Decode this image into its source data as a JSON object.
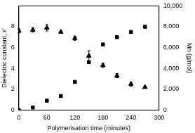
{
  "chart_data": {
    "type": "scatter",
    "x_label": "Polymerisation time (minutes)",
    "y_label": "Dielectric constant, ε'",
    "y2_label": "Mn (g/mol)",
    "x": [
      0,
      30,
      60,
      90,
      120,
      150,
      180,
      210,
      240,
      270
    ],
    "xlim": [
      0,
      300
    ],
    "xticks": [
      0,
      60,
      120,
      180,
      240,
      300
    ],
    "ylim": [
      0,
      10
    ],
    "yticks": [
      0,
      2,
      4,
      6,
      8
    ],
    "y2lim": [
      0,
      10000
    ],
    "y2ticks": [
      0,
      2000,
      4000,
      6000,
      8000,
      10000
    ],
    "grid": false,
    "series": [
      {
        "name": "Dielectric constant, ε'",
        "color": "#000000",
        "marker": "triangle",
        "values": [
          7.6,
          7.7,
          7.9,
          7.5,
          6.9,
          5.2,
          4.3,
          3.3,
          2.5,
          2.2
        ],
        "errors": [
          0.2,
          0.2,
          0.3,
          0.1,
          0.2,
          0.5,
          0.2,
          0.2,
          0.2,
          0.1
        ]
      },
      {
        "name": "Mn (g/mol)",
        "color": "#000000",
        "marker": "square",
        "axis": "y2",
        "values": [
          0,
          250,
          900,
          1350,
          2700,
          4600,
          6300,
          7000,
          7500,
          8000
        ]
      }
    ]
  }
}
